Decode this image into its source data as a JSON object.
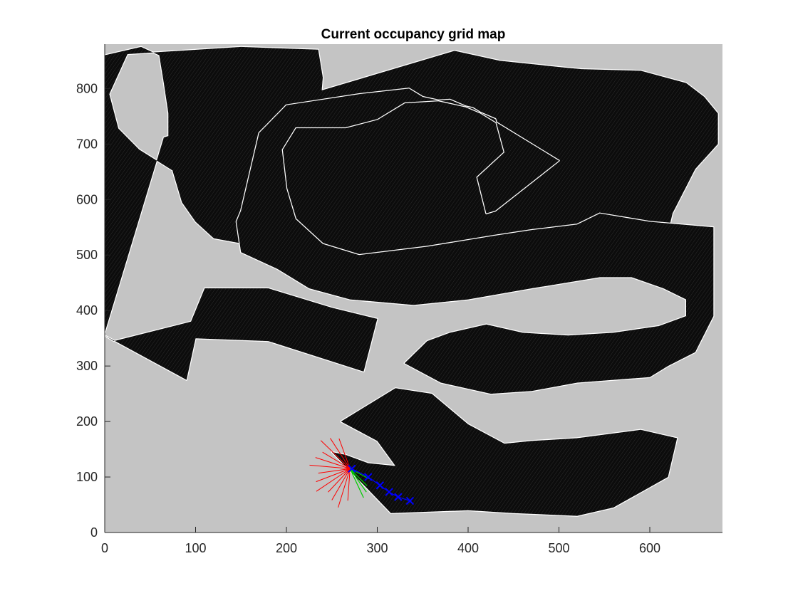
{
  "chart_data": {
    "type": "heatmap",
    "title": "Current occupancy grid map",
    "xlabel": "",
    "ylabel": "",
    "xlim": [
      0,
      680
    ],
    "ylim": [
      0,
      880
    ],
    "xticks": [
      0,
      100,
      200,
      300,
      400,
      500,
      600
    ],
    "yticks": [
      0,
      100,
      200,
      300,
      400,
      500,
      600,
      700,
      800
    ],
    "grid": false,
    "colors": {
      "unknown": "#c4c4c4",
      "occupied": "#000000",
      "free_edge": "#ffffff",
      "laser_rays": "#ff0000",
      "planned_path": "#00cc00",
      "waypoints": "#0000ff"
    },
    "explored_track": [
      [
        [
          0,
          360
        ],
        [
          65,
          712
        ],
        [
          385,
          868
        ],
        [
          435,
          850
        ],
        [
          505,
          838
        ],
        [
          525,
          835
        ],
        [
          590,
          832
        ],
        [
          640,
          810
        ],
        [
          660,
          785
        ],
        [
          675,
          755
        ],
        [
          675,
          700
        ],
        [
          650,
          655
        ],
        [
          625,
          575
        ],
        [
          620,
          540
        ],
        [
          555,
          490
        ],
        [
          510,
          462
        ],
        [
          445,
          448
        ],
        [
          360,
          440
        ],
        [
          280,
          480
        ],
        [
          228,
          528
        ],
        [
          205,
          560
        ],
        [
          155,
          600
        ],
        [
          120,
          625
        ],
        [
          75,
          652
        ],
        [
          38,
          690
        ],
        [
          15,
          728
        ],
        [
          5,
          790
        ],
        [
          25,
          862
        ],
        [
          150,
          875
        ],
        [
          235,
          870
        ],
        [
          240,
          820
        ],
        [
          237,
          760
        ],
        [
          265,
          745
        ],
        [
          330,
          730
        ],
        [
          390,
          718
        ],
        [
          420,
          705
        ],
        [
          445,
          690
        ],
        [
          470,
          660
        ],
        [
          490,
          612
        ],
        [
          495,
          578
        ],
        [
          470,
          552
        ],
        [
          440,
          535
        ],
        [
          395,
          520
        ],
        [
          360,
          515
        ],
        [
          305,
          510
        ],
        [
          250,
          508
        ],
        [
          180,
          512
        ],
        [
          120,
          530
        ],
        [
          100,
          560
        ],
        [
          85,
          595
        ],
        [
          75,
          650
        ],
        [
          70,
          700
        ],
        [
          70,
          755
        ],
        [
          65,
          810
        ],
        [
          60,
          860
        ],
        [
          40,
          875
        ],
        [
          0,
          860
        ]
      ],
      [
        [
          0,
          355
        ],
        [
          90,
          275
        ],
        [
          100,
          350
        ],
        [
          180,
          345
        ],
        [
          285,
          290
        ],
        [
          300,
          385
        ],
        [
          250,
          405
        ],
        [
          180,
          440
        ],
        [
          110,
          440
        ],
        [
          95,
          380
        ],
        [
          10,
          345
        ]
      ],
      [
        [
          150,
          580
        ],
        [
          170,
          720
        ],
        [
          200,
          770
        ],
        [
          280,
          790
        ],
        [
          335,
          800
        ],
        [
          350,
          785
        ],
        [
          405,
          765
        ],
        [
          500,
          670
        ],
        [
          430,
          580
        ],
        [
          420,
          575
        ],
        [
          410,
          640
        ],
        [
          440,
          685
        ],
        [
          430,
          745
        ],
        [
          380,
          780
        ],
        [
          330,
          775
        ],
        [
          300,
          745
        ],
        [
          265,
          730
        ],
        [
          210,
          730
        ],
        [
          195,
          690
        ],
        [
          200,
          620
        ],
        [
          210,
          565
        ],
        [
          240,
          520
        ],
        [
          280,
          500
        ],
        [
          355,
          515
        ],
        [
          430,
          535
        ],
        [
          470,
          545
        ],
        [
          520,
          555
        ],
        [
          545,
          575
        ],
        [
          600,
          560
        ],
        [
          670,
          550
        ],
        [
          670,
          390
        ],
        [
          650,
          325
        ],
        [
          620,
          300
        ],
        [
          600,
          280
        ],
        [
          520,
          270
        ],
        [
          470,
          255
        ],
        [
          425,
          250
        ],
        [
          370,
          270
        ],
        [
          330,
          305
        ],
        [
          355,
          345
        ],
        [
          380,
          360
        ],
        [
          420,
          375
        ],
        [
          460,
          360
        ],
        [
          510,
          355
        ],
        [
          560,
          360
        ],
        [
          610,
          372
        ],
        [
          640,
          390
        ],
        [
          640,
          420
        ],
        [
          615,
          440
        ],
        [
          580,
          460
        ],
        [
          545,
          460
        ],
        [
          470,
          440
        ],
        [
          400,
          420
        ],
        [
          340,
          410
        ],
        [
          270,
          420
        ],
        [
          225,
          440
        ],
        [
          190,
          475
        ],
        [
          150,
          505
        ],
        [
          145,
          560
        ]
      ],
      [
        [
          250,
          145
        ],
        [
          315,
          35
        ],
        [
          400,
          40
        ],
        [
          450,
          35
        ],
        [
          520,
          30
        ],
        [
          560,
          45
        ],
        [
          620,
          100
        ],
        [
          630,
          170
        ],
        [
          590,
          185
        ],
        [
          520,
          170
        ],
        [
          470,
          165
        ],
        [
          440,
          160
        ],
        [
          400,
          195
        ],
        [
          360,
          250
        ],
        [
          320,
          260
        ],
        [
          275,
          215
        ],
        [
          260,
          200
        ],
        [
          300,
          165
        ],
        [
          320,
          120
        ],
        [
          290,
          125
        ],
        [
          265,
          140
        ]
      ]
    ],
    "robot_position": [
      270,
      115
    ],
    "path_waypoints": [
      [
        272,
        115
      ],
      [
        290,
        100
      ],
      [
        303,
        85
      ],
      [
        313,
        73
      ],
      [
        323,
        64
      ],
      [
        336,
        57
      ]
    ]
  }
}
